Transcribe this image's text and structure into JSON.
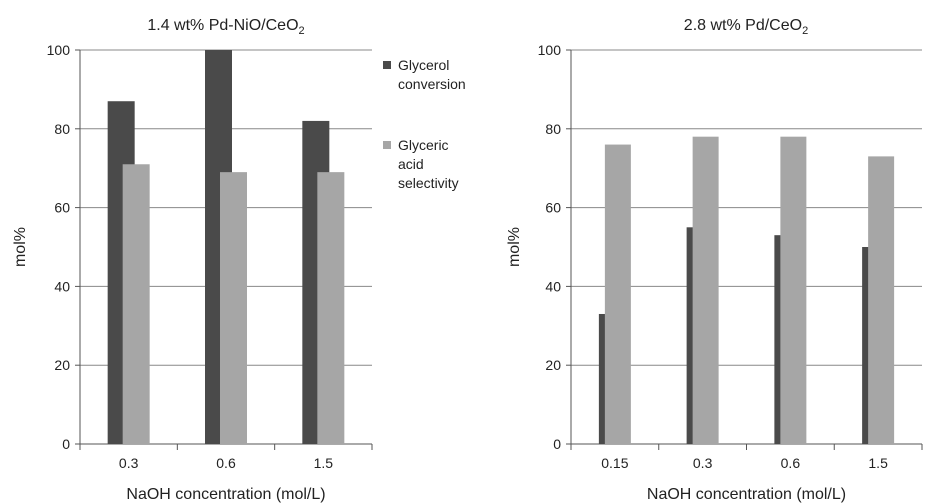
{
  "chart_data": [
    {
      "type": "bar",
      "title": "1.4 wt% Pd-NiO/CeO",
      "title_subscript": "2",
      "xlabel": "NaOH concentration (mol/L)",
      "ylabel": "mol%",
      "ylim": [
        0,
        100
      ],
      "yticks": [
        0,
        20,
        40,
        60,
        80,
        100
      ],
      "grid": true,
      "categories": [
        "0.3",
        "0.6",
        "1.5"
      ],
      "series": [
        {
          "name": "Glycerol conversion",
          "values": [
            87,
            100,
            82
          ]
        },
        {
          "name": "Glyceric acid selectivity",
          "values": [
            71,
            69,
            69
          ]
        }
      ],
      "legend": {
        "position": "right",
        "entries": [
          {
            "lines": [
              "Glycerol",
              "conversion"
            ]
          },
          {
            "lines": [
              "Glyceric",
              "acid",
              "selectivity"
            ]
          }
        ]
      }
    },
    {
      "type": "bar",
      "title": "2.8 wt% Pd/CeO",
      "title_subscript": "2",
      "xlabel": "NaOH concentration (mol/L)",
      "ylabel": "mol%",
      "ylim": [
        0,
        100
      ],
      "yticks": [
        0,
        20,
        40,
        60,
        80,
        100
      ],
      "grid": true,
      "categories": [
        "0.15",
        "0.3",
        "0.6",
        "1.5"
      ],
      "series": [
        {
          "values": [
            33,
            55,
            53,
            50
          ]
        },
        {
          "values": [
            76,
            78,
            78,
            73
          ]
        }
      ]
    }
  ],
  "colors": {
    "series": [
      "#4a4a4a",
      "#a6a6a6"
    ],
    "grid": "#888888",
    "axis": "#555555"
  }
}
